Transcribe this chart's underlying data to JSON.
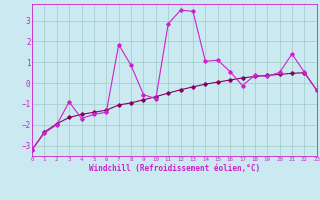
{
  "bg_color": "#cbe9f0",
  "grid_color": "#a0ccc8",
  "line_color": "#cc22cc",
  "line_color2": "#880066",
  "xlabel": "Windchill (Refroidissement éolien,°C)",
  "xlim": [
    0,
    23
  ],
  "ylim": [
    -3.5,
    3.8
  ],
  "yticks": [
    -3,
    -2,
    -1,
    0,
    1,
    2,
    3
  ],
  "xticks": [
    0,
    1,
    2,
    3,
    4,
    5,
    6,
    7,
    8,
    9,
    10,
    11,
    12,
    13,
    14,
    15,
    16,
    17,
    18,
    19,
    20,
    21,
    22,
    23
  ],
  "series1_x": [
    0,
    1,
    2,
    3,
    4,
    5,
    6,
    7,
    8,
    9,
    10,
    11,
    12,
    13,
    14,
    15,
    16,
    17,
    18,
    19,
    20,
    21,
    22,
    23
  ],
  "series1_y": [
    -3.2,
    -2.4,
    -2.0,
    -0.9,
    -1.7,
    -1.5,
    -1.4,
    1.85,
    0.85,
    -0.55,
    -0.75,
    2.85,
    3.5,
    3.45,
    1.05,
    1.1,
    0.55,
    -0.12,
    0.38,
    0.32,
    0.52,
    1.4,
    0.52,
    -0.35
  ],
  "series2_x": [
    0,
    1,
    2,
    3,
    4,
    5,
    6,
    7,
    8,
    9,
    10,
    11,
    12,
    13,
    14,
    15,
    16,
    17,
    18,
    19,
    20,
    21,
    22,
    23
  ],
  "series2_y": [
    -3.2,
    -2.35,
    -1.95,
    -1.65,
    -1.5,
    -1.4,
    -1.3,
    -1.05,
    -0.95,
    -0.8,
    -0.65,
    -0.48,
    -0.32,
    -0.18,
    -0.05,
    0.05,
    0.15,
    0.25,
    0.32,
    0.37,
    0.42,
    0.47,
    0.5,
    -0.35
  ],
  "marker": "D",
  "marker_size": 1.8,
  "linewidth": 0.8
}
